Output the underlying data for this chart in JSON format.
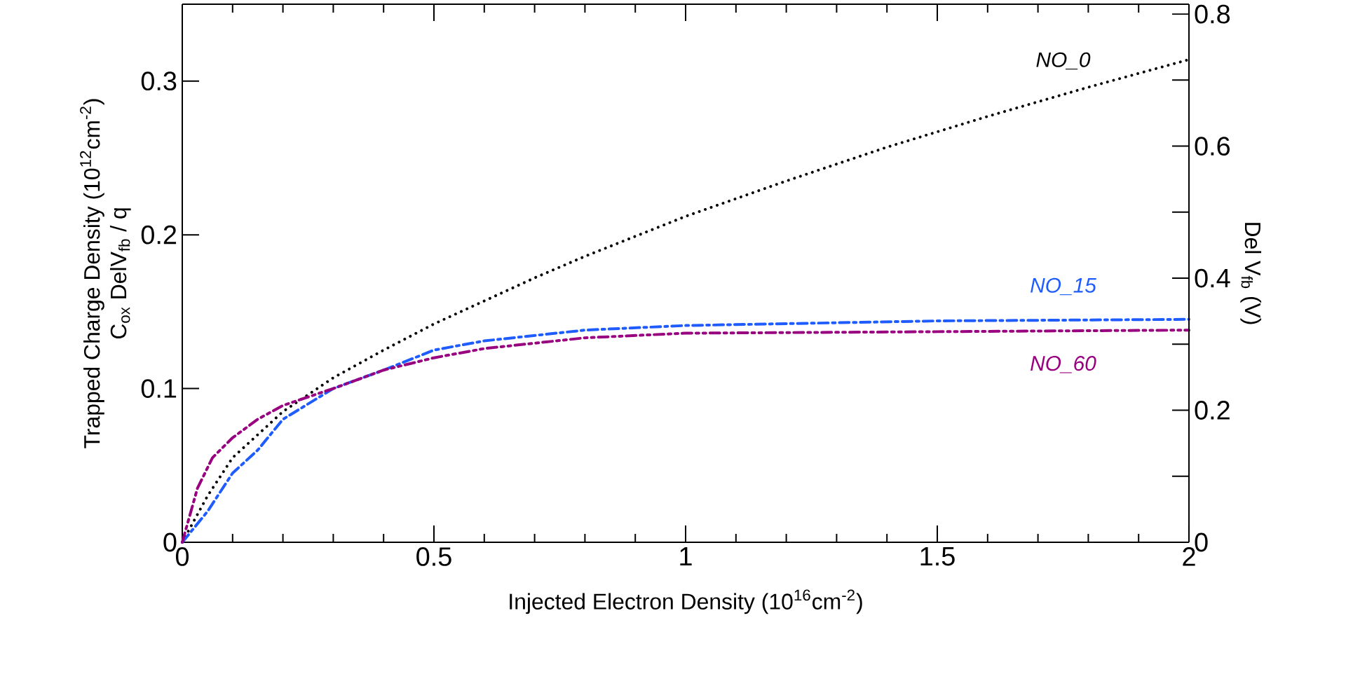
{
  "chart_data": {
    "type": "line",
    "xlabel": "Injected Electron Density (10$^{16}$cm$^{-2}$)",
    "ylabel": [
      "Trapped Charge Density (10$^{12}$cm$^{-2}$)",
      "C$_{ox}$ DelV$_{fb}$ / q"
    ],
    "y2label": "Del V$_{fb}$ (V)",
    "xlim": [
      0,
      2
    ],
    "xticks": [
      0,
      0.5,
      1,
      1.5,
      2
    ],
    "ylim": [
      0,
      0.35
    ],
    "yticks": [
      0,
      0.1,
      0.2,
      0.3
    ],
    "y2lim": [
      0,
      0.815
    ],
    "y2ticks": [
      0,
      {
        "value": 0.1,
        "label": null
      },
      0.2,
      {
        "value": 0.3,
        "label": null
      },
      0.4,
      {
        "value": 0.5,
        "label": null
      },
      0.6,
      {
        "value": 0.7,
        "label": null
      },
      0.8
    ],
    "grid": false,
    "legend": false,
    "marker": "none",
    "series": [
      {
        "name": "NO_0",
        "color": "#000000",
        "line_style": "dotted",
        "x": [
          0,
          0.05,
          0.1,
          0.2,
          0.3,
          0.4,
          0.5,
          0.6,
          0.7,
          0.8,
          0.9,
          1.0,
          1.2,
          1.4,
          1.6,
          1.8,
          2.0
        ],
        "values": [
          0,
          0.03,
          0.055,
          0.085,
          0.107,
          0.125,
          0.142,
          0.157,
          0.172,
          0.186,
          0.199,
          0.212,
          0.235,
          0.257,
          0.277,
          0.296,
          0.314
        ]
      },
      {
        "name": "NO_15",
        "color": "#1f5cff",
        "line_style": "dashdot",
        "x": [
          0,
          0.05,
          0.1,
          0.15,
          0.2,
          0.3,
          0.4,
          0.5,
          0.6,
          0.8,
          1.0,
          1.5,
          2.0
        ],
        "values": [
          0,
          0.02,
          0.045,
          0.06,
          0.08,
          0.1,
          0.112,
          0.125,
          0.131,
          0.138,
          0.141,
          0.144,
          0.145
        ]
      },
      {
        "name": "NO_60",
        "color": "#990080",
        "line_style": "dashdotdot",
        "x": [
          0,
          0.03,
          0.06,
          0.1,
          0.15,
          0.2,
          0.3,
          0.4,
          0.5,
          0.6,
          0.8,
          1.0,
          1.5,
          2.0
        ],
        "values": [
          0,
          0.035,
          0.055,
          0.068,
          0.08,
          0.089,
          0.1,
          0.112,
          0.12,
          0.126,
          0.133,
          0.136,
          0.137,
          0.138
        ]
      }
    ]
  }
}
